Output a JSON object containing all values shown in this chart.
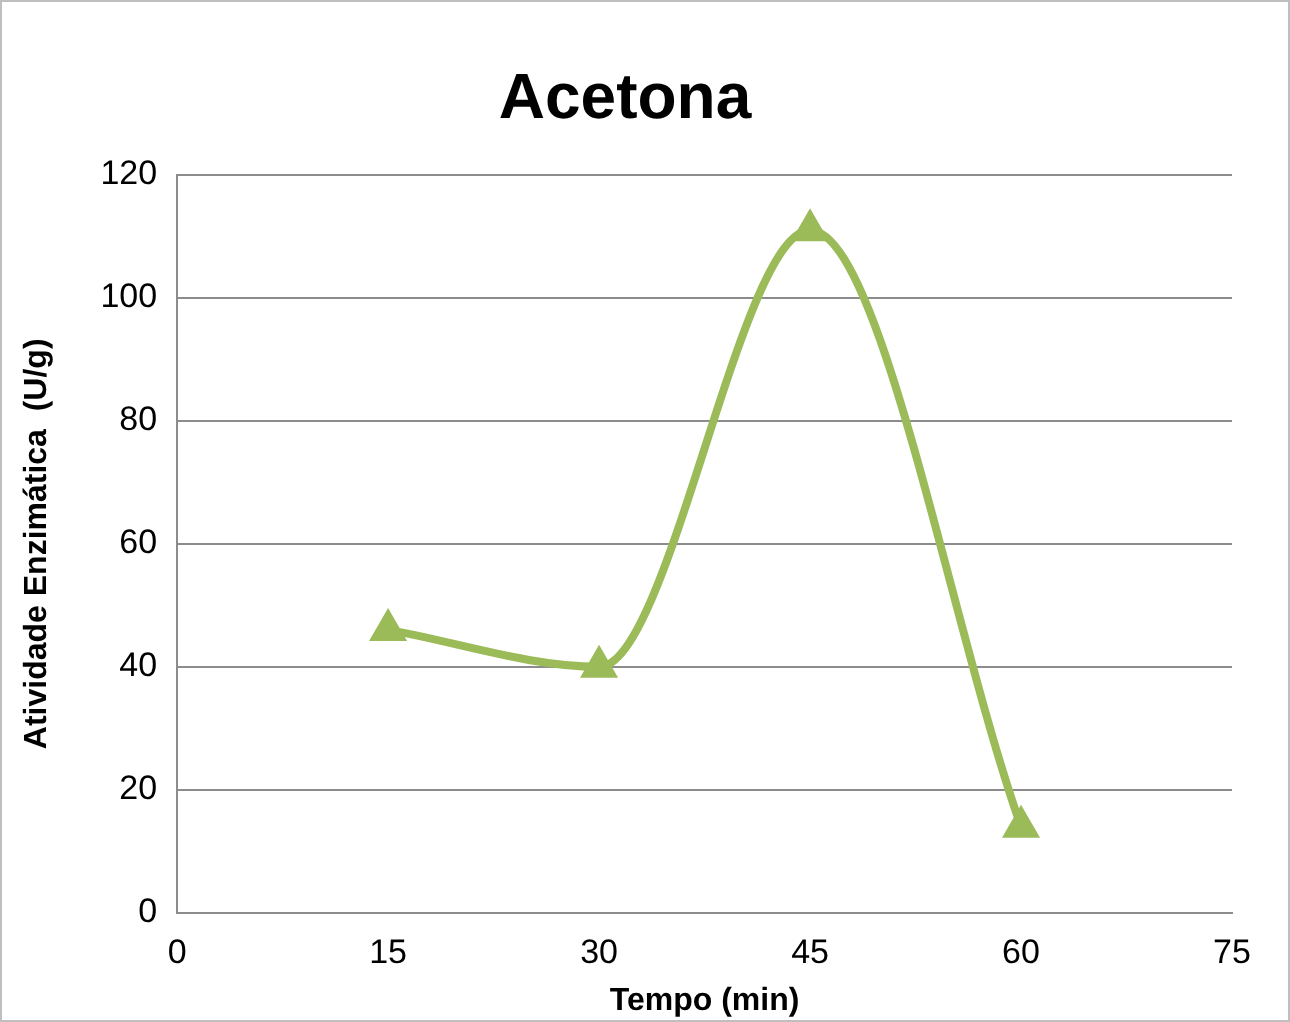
{
  "chart_data": {
    "type": "line",
    "title": "Acetona",
    "xlabel": "Tempo (min)",
    "ylabel": "Atividade Enzimática  (U/g)",
    "x": [
      15,
      30,
      45,
      60
    ],
    "series": [
      {
        "color": "#9bbb59",
        "values": [
          46,
          40,
          111,
          14
        ]
      }
    ],
    "xlim": [
      0,
      75
    ],
    "xticks": [
      0,
      15,
      30,
      45,
      60,
      75
    ],
    "ylim": [
      0,
      120
    ],
    "yticks": [
      0,
      20,
      40,
      60,
      80,
      100,
      120
    ],
    "grid": "y",
    "legend": false,
    "marker": "triangle",
    "line_style": "solid"
  }
}
